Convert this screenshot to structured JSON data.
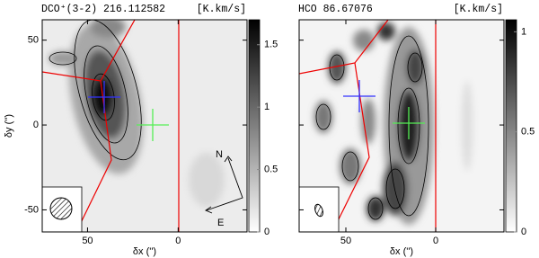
{
  "chart_data": [
    {
      "type": "map",
      "title": "DCO⁺(3-2) 216.112582",
      "unit": "[K.km/s]",
      "x_label": "δx ('')",
      "y_label": "δy ('')",
      "xlim": [
        75,
        -38
      ],
      "ylim": [
        -63,
        62
      ],
      "xticks": [
        50,
        0
      ],
      "yticks": [
        50,
        0,
        -50
      ],
      "ytick_labels": true,
      "colorbar_lim": [
        0,
        1.7
      ],
      "colorbar_ticks": [
        0,
        0.5,
        1,
        1.5
      ],
      "annotations": [
        "N",
        "E"
      ]
    },
    {
      "type": "map",
      "title": "HCO 86.67076",
      "unit": "[K.km/s]",
      "x_label": "δx ('')",
      "xlim": [
        76,
        -38
      ],
      "ylim": [
        -63,
        62
      ],
      "xticks": [
        50,
        0
      ],
      "yticks": [
        50,
        0,
        -50
      ],
      "ytick_labels": false,
      "colorbar_lim": [
        0,
        1.06
      ],
      "colorbar_ticks": [
        0,
        0.5,
        1
      ]
    }
  ]
}
